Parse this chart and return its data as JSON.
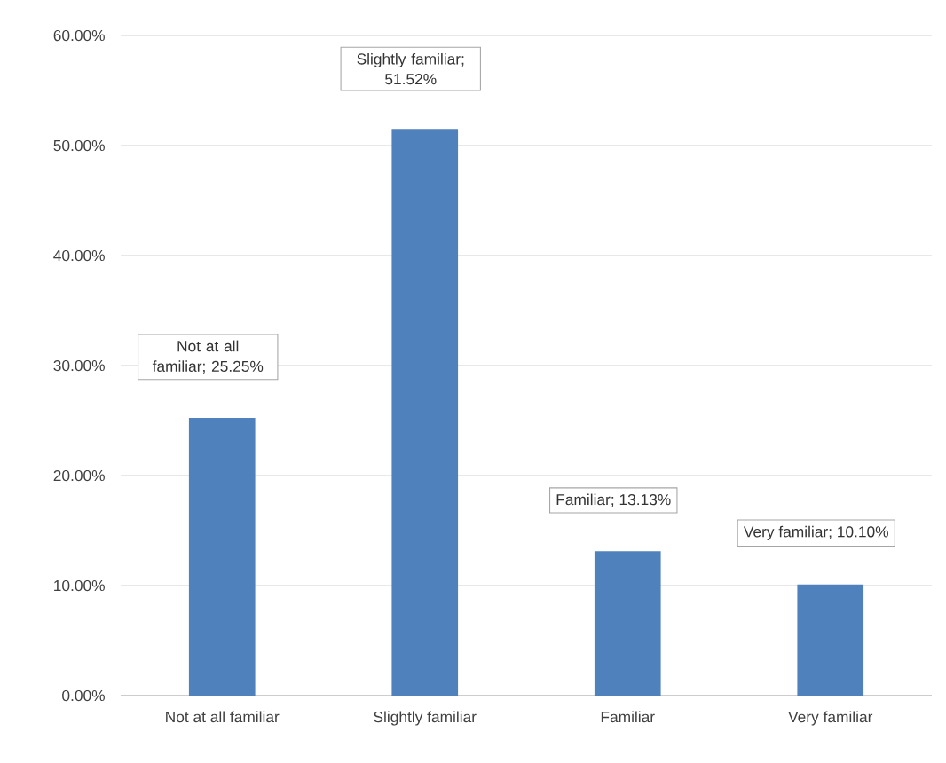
{
  "chart_data": {
    "type": "bar",
    "categories": [
      "Not at all familiar",
      "Slightly familiar",
      "Familiar",
      "Very familiar"
    ],
    "values": [
      25.25,
      51.52,
      13.13,
      10.1
    ],
    "color": "#4f81bd",
    "value_labels": [
      "Not at all familiar; 25.25%",
      "Slightly familiar; 51.52%",
      "Familiar; 13.13%",
      "Very familiar; 10.10%"
    ],
    "ylim": [
      0,
      60
    ],
    "yticks": [
      {
        "value": 0,
        "label": "0.00%"
      },
      {
        "value": 10,
        "label": "10.00%"
      },
      {
        "value": 20,
        "label": "20.00%"
      },
      {
        "value": 30,
        "label": "30.00%"
      },
      {
        "value": 40,
        "label": "40.00%"
      },
      {
        "value": 50,
        "label": "50.00%"
      },
      {
        "value": 60,
        "label": "60.00%"
      }
    ],
    "grid": "y"
  }
}
